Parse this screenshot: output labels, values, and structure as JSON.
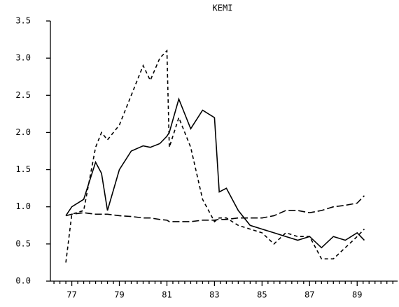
{
  "chart_data": {
    "type": "line",
    "title": "KEMI",
    "x": [
      76.75,
      77,
      77.5,
      78,
      78.25,
      78.5,
      79,
      79.5,
      80,
      80.3,
      80.7,
      81,
      81.1,
      81.5,
      82,
      82.5,
      83,
      83.2,
      83.5,
      84,
      84.5,
      85,
      85.5,
      86,
      86.5,
      87,
      87.5,
      88,
      88.5,
      89,
      89.3
    ],
    "series": [
      {
        "color": "#000000",
        "dash": "solid",
        "values": [
          0.88,
          1.0,
          1.1,
          1.6,
          1.45,
          0.95,
          1.5,
          1.75,
          1.82,
          1.8,
          1.85,
          1.95,
          2.0,
          2.45,
          2.05,
          2.3,
          2.2,
          1.2,
          1.25,
          0.95,
          0.75,
          0.7,
          0.65,
          0.6,
          0.55,
          0.6,
          0.45,
          0.6,
          0.55,
          0.65,
          0.55
        ]
      },
      {
        "color": "#000000",
        "dash": "long",
        "values": [
          0.88,
          0.9,
          0.92,
          0.9,
          0.9,
          0.9,
          0.88,
          0.87,
          0.85,
          0.85,
          0.83,
          0.82,
          0.8,
          0.8,
          0.8,
          0.82,
          0.82,
          0.83,
          0.83,
          0.85,
          0.85,
          0.85,
          0.88,
          0.95,
          0.95,
          0.92,
          0.95,
          1.0,
          1.02,
          1.05,
          1.15
        ]
      },
      {
        "color": "#000000",
        "dash": "short",
        "values": [
          0.25,
          0.9,
          0.95,
          1.8,
          2.0,
          1.9,
          2.1,
          2.5,
          2.9,
          2.7,
          3.0,
          3.1,
          1.8,
          2.2,
          1.8,
          1.1,
          0.8,
          0.85,
          0.85,
          0.75,
          0.7,
          0.65,
          0.5,
          0.65,
          0.6,
          0.6,
          0.3,
          0.3,
          0.45,
          0.6,
          0.7
        ]
      }
    ],
    "xlim": [
      76.1,
      90.7
    ],
    "xticks": [
      77,
      79,
      81,
      83,
      85,
      87,
      89
    ],
    "xminor": 8,
    "ylim": [
      0,
      3.5
    ],
    "yticks": [
      {
        "value": 0,
        "label": "0.0"
      },
      0.5,
      {
        "value": 1,
        "label": "1.0"
      },
      1.5,
      {
        "value": 2,
        "label": "2.0"
      },
      2.5,
      {
        "value": 3,
        "label": "3.0"
      },
      3.5
    ],
    "grid": false
  }
}
